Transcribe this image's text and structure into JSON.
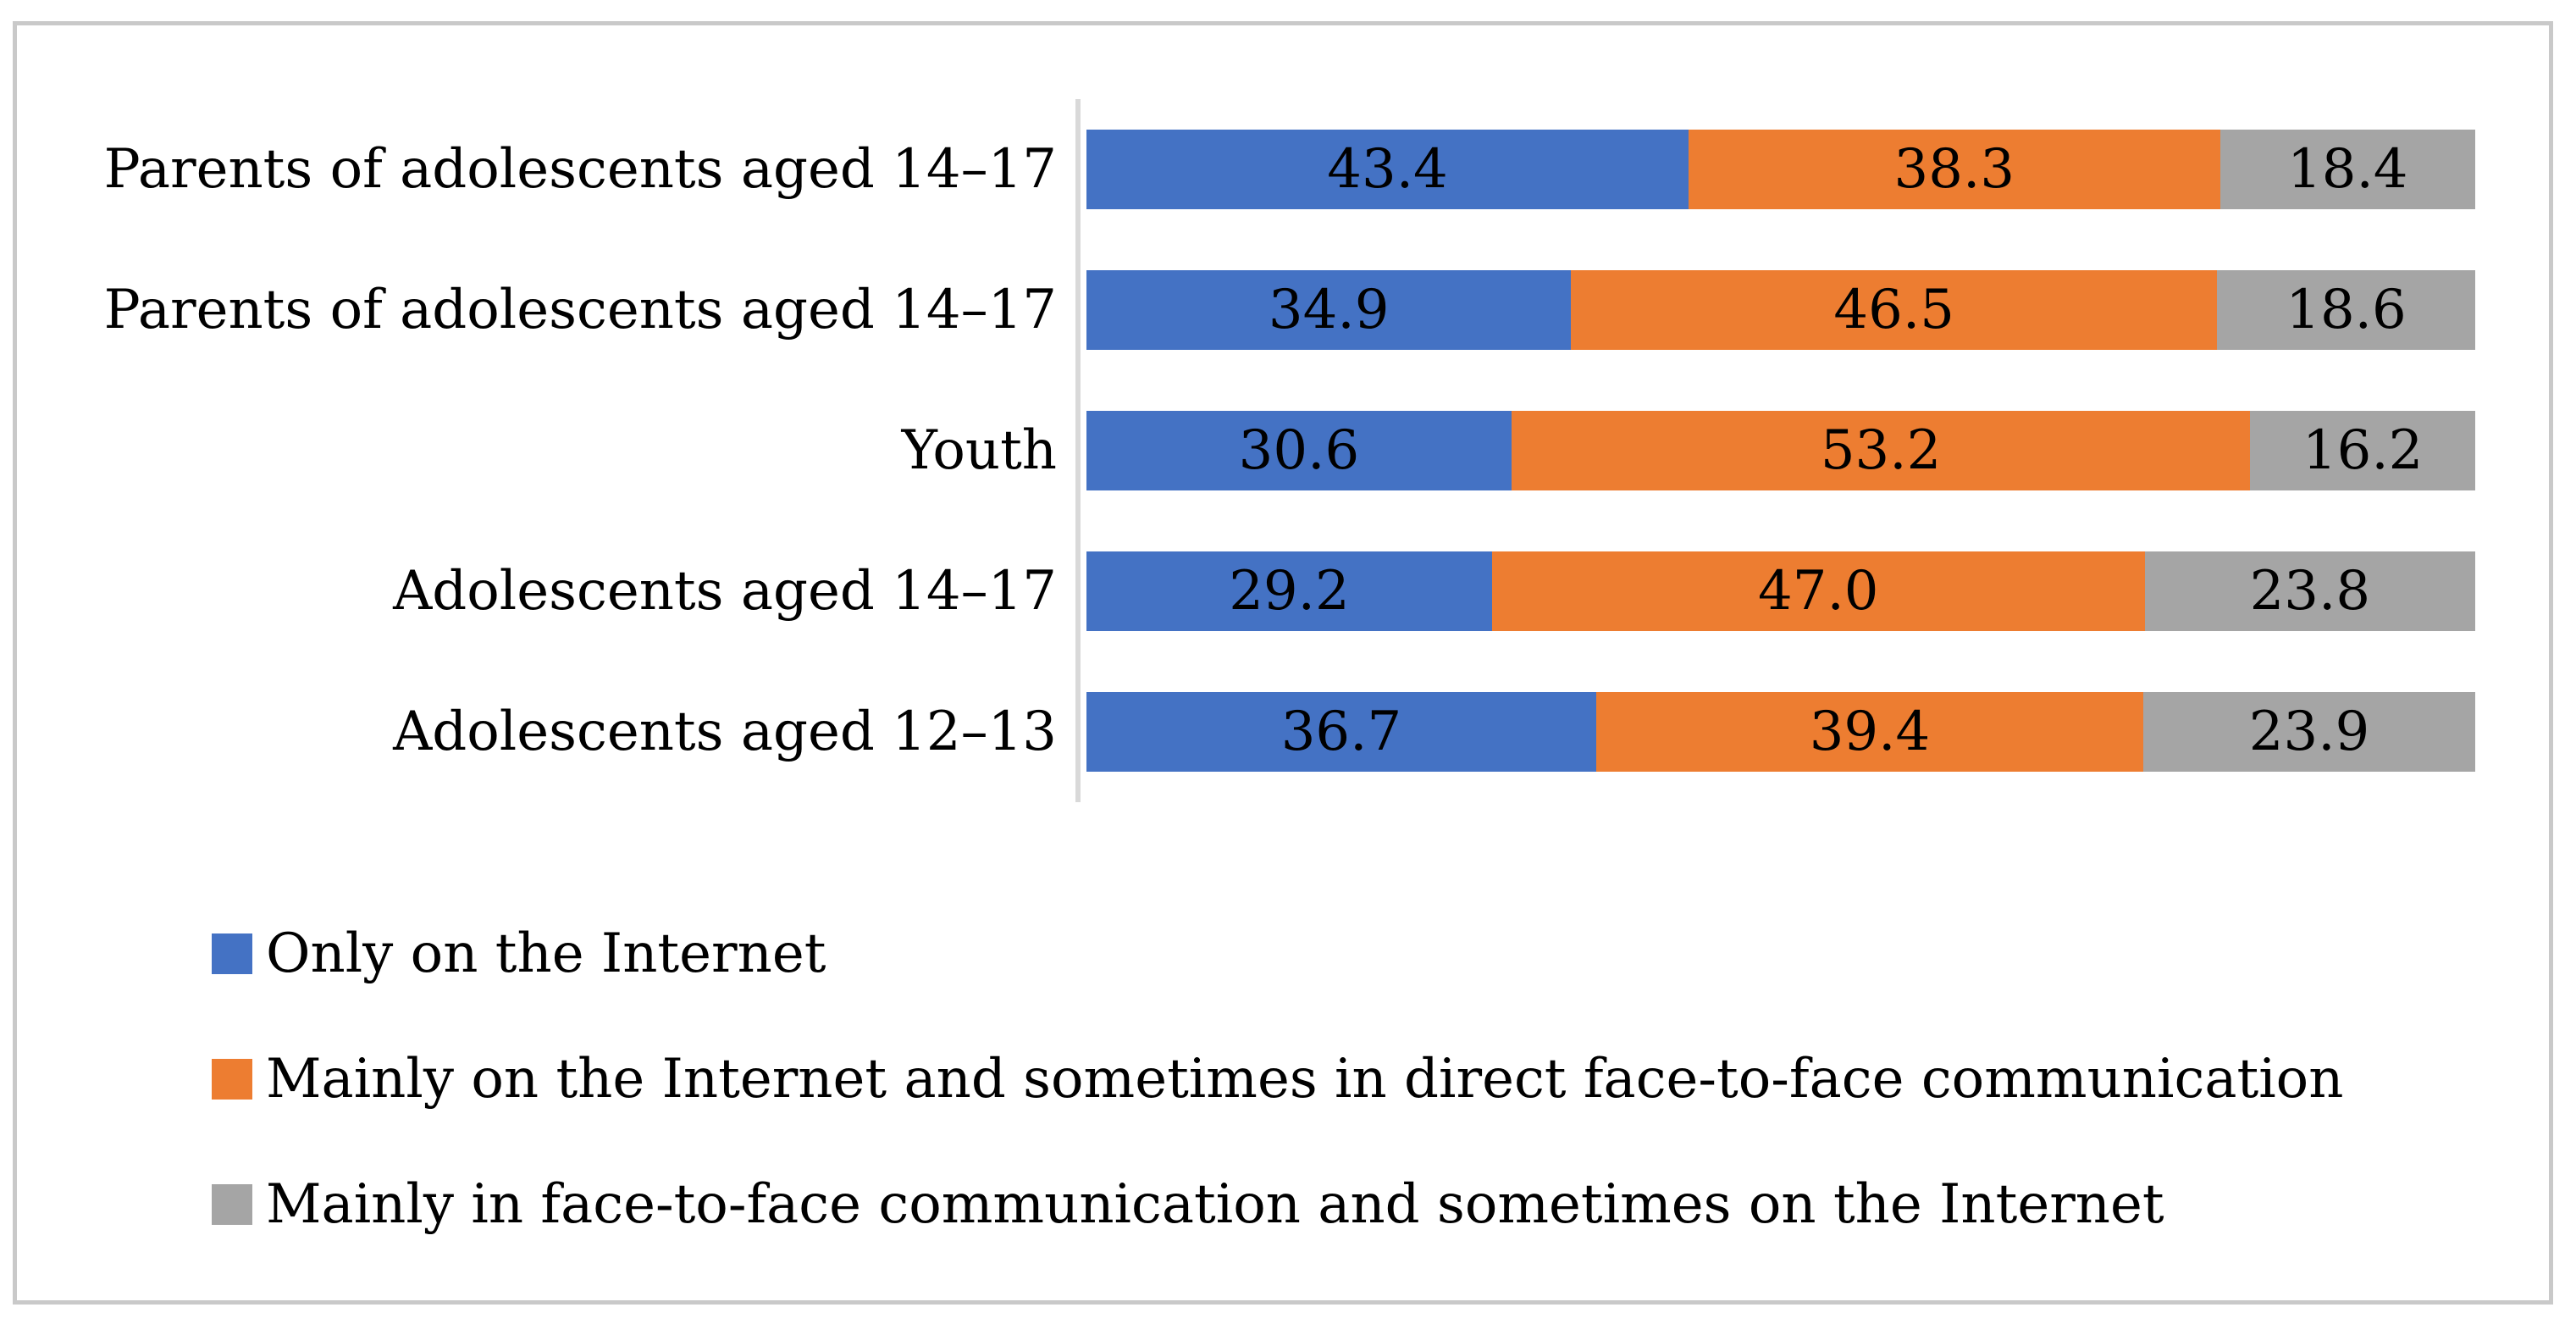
{
  "figure": {
    "background_color": "#ffffff",
    "frame_border_color": "#c9c9c9"
  },
  "chart_data": {
    "type": "bar",
    "orientation": "horizontal",
    "stacked": true,
    "stacked_total": 100,
    "grid": false,
    "title": "",
    "xlabel": "",
    "ylabel": "",
    "axis_line_color": "#d9d9d9",
    "value_label_color": "#000000",
    "legend_position": "bottom-left",
    "categories": [
      "Parents of adolescents aged 14–17",
      "Parents of adolescents aged 14–17",
      "Youth",
      "Adolescents aged 14–17",
      "Adolescents aged 12–13"
    ],
    "series": [
      {
        "name": "Only on the Internet",
        "color": "#4472c4",
        "values": [
          43.4,
          34.9,
          30.6,
          29.2,
          36.7
        ],
        "labels": [
          "43.4",
          "34.9",
          "30.6",
          "29.2",
          "36.7"
        ]
      },
      {
        "name": "Mainly on the Internet and sometimes in direct face-to-face communication",
        "color": "#ed7d31",
        "values": [
          38.3,
          46.5,
          53.2,
          47.0,
          39.4
        ],
        "labels": [
          "38.3",
          "46.5",
          "53.2",
          "47.0",
          "39.4"
        ]
      },
      {
        "name": "Mainly in face-to-face communication and sometimes on the Internet",
        "color": "#a5a5a5",
        "values": [
          18.4,
          18.6,
          16.2,
          23.8,
          23.9
        ],
        "labels": [
          "18.4",
          "18.6",
          "16.2",
          "23.8",
          "23.9"
        ]
      }
    ]
  }
}
